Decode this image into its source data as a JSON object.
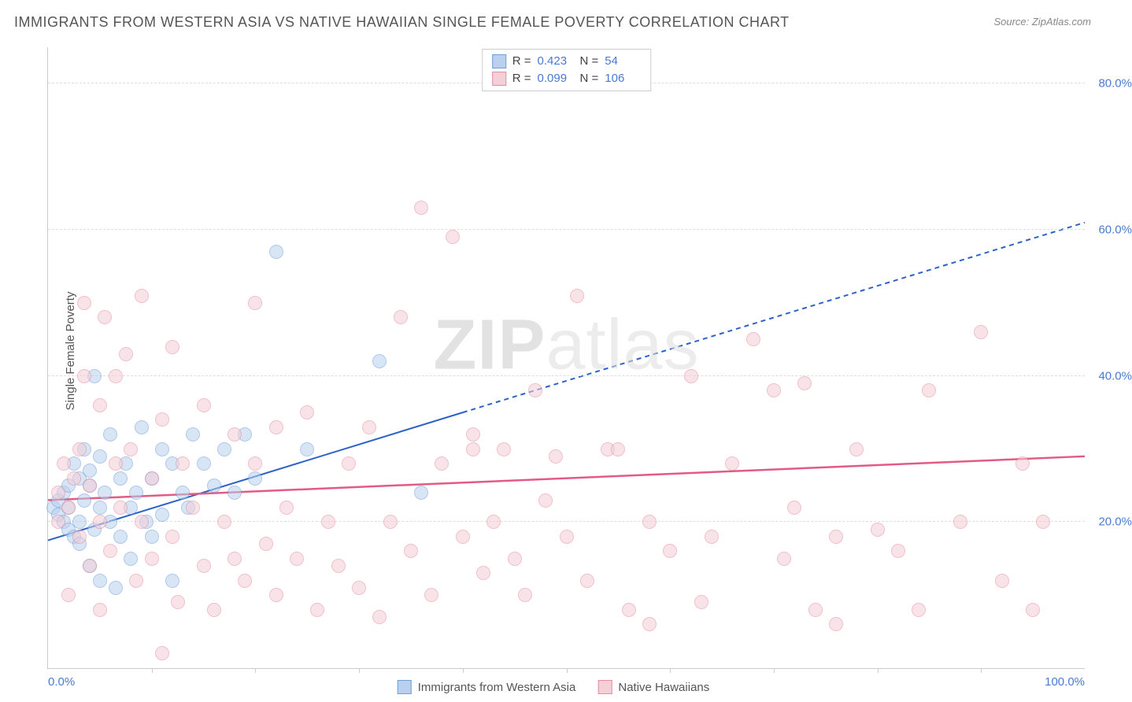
{
  "title": "IMMIGRANTS FROM WESTERN ASIA VS NATIVE HAWAIIAN SINGLE FEMALE POVERTY CORRELATION CHART",
  "source": "Source: ZipAtlas.com",
  "ylabel": "Single Female Poverty",
  "watermark_bold": "ZIP",
  "watermark_rest": "atlas",
  "chart": {
    "type": "scatter",
    "xlim": [
      0,
      100
    ],
    "ylim": [
      0,
      85
    ],
    "xtick_labels": {
      "0": "0.0%",
      "100": "100.0%"
    },
    "xtick_minor": [
      10,
      20,
      30,
      40,
      50,
      60,
      70,
      80,
      90
    ],
    "ytick_labels": {
      "20": "20.0%",
      "40": "40.0%",
      "60": "60.0%",
      "80": "80.0%"
    },
    "grid_color": "#dddddd",
    "axis_color": "#cccccc",
    "background_color": "#ffffff",
    "marker_radius": 9,
    "series": [
      {
        "id": "series-a",
        "name": "Immigrants from Western Asia",
        "fill": "#b9d0ee",
        "stroke": "#6f9edb",
        "fill_opacity": 0.55,
        "R": "0.423",
        "N": "54",
        "trend": {
          "color": "#2c62c8",
          "width": 2,
          "solid_from": [
            0,
            17.5
          ],
          "solid_to": [
            40,
            35
          ],
          "dash_to": [
            100,
            61
          ]
        },
        "points": [
          [
            0.5,
            22
          ],
          [
            1,
            21
          ],
          [
            1,
            23
          ],
          [
            1.5,
            20
          ],
          [
            1.5,
            24
          ],
          [
            2,
            19
          ],
          [
            2,
            25
          ],
          [
            2,
            22
          ],
          [
            2.5,
            28
          ],
          [
            2.5,
            18
          ],
          [
            3,
            26
          ],
          [
            3,
            20
          ],
          [
            3,
            17
          ],
          [
            3.5,
            23
          ],
          [
            3.5,
            30
          ],
          [
            4,
            14
          ],
          [
            4,
            25
          ],
          [
            4,
            27
          ],
          [
            4.5,
            40
          ],
          [
            4.5,
            19
          ],
          [
            5,
            22
          ],
          [
            5,
            12
          ],
          [
            5,
            29
          ],
          [
            5.5,
            24
          ],
          [
            6,
            32
          ],
          [
            6,
            20
          ],
          [
            6.5,
            11
          ],
          [
            7,
            26
          ],
          [
            7,
            18
          ],
          [
            7.5,
            28
          ],
          [
            8,
            22
          ],
          [
            8,
            15
          ],
          [
            8.5,
            24
          ],
          [
            9,
            33
          ],
          [
            9.5,
            20
          ],
          [
            10,
            26
          ],
          [
            10,
            18
          ],
          [
            11,
            30
          ],
          [
            11,
            21
          ],
          [
            12,
            12
          ],
          [
            12,
            28
          ],
          [
            13,
            24
          ],
          [
            13.5,
            22
          ],
          [
            14,
            32
          ],
          [
            15,
            28
          ],
          [
            16,
            25
          ],
          [
            17,
            30
          ],
          [
            18,
            24
          ],
          [
            19,
            32
          ],
          [
            20,
            26
          ],
          [
            22,
            57
          ],
          [
            25,
            30
          ],
          [
            32,
            42
          ],
          [
            36,
            24
          ]
        ]
      },
      {
        "id": "series-b",
        "name": "Native Hawaiians",
        "fill": "#f3cfd7",
        "stroke": "#e48da0",
        "fill_opacity": 0.55,
        "R": "0.099",
        "N": "106",
        "trend": {
          "color": "#e35b84",
          "width": 2.5,
          "solid_from": [
            0,
            23
          ],
          "solid_to": [
            100,
            29
          ]
        },
        "points": [
          [
            1,
            24
          ],
          [
            1,
            20
          ],
          [
            1.5,
            28
          ],
          [
            2,
            22
          ],
          [
            2,
            10
          ],
          [
            2.5,
            26
          ],
          [
            3,
            30
          ],
          [
            3,
            18
          ],
          [
            3.5,
            50
          ],
          [
            3.5,
            40
          ],
          [
            4,
            14
          ],
          [
            4,
            25
          ],
          [
            5,
            36
          ],
          [
            5,
            20
          ],
          [
            5,
            8
          ],
          [
            5.5,
            48
          ],
          [
            6,
            16
          ],
          [
            6.5,
            28
          ],
          [
            6.5,
            40
          ],
          [
            7,
            22
          ],
          [
            7.5,
            43
          ],
          [
            8,
            30
          ],
          [
            8.5,
            12
          ],
          [
            9,
            51
          ],
          [
            9,
            20
          ],
          [
            10,
            26
          ],
          [
            10,
            15
          ],
          [
            11,
            34
          ],
          [
            11,
            2
          ],
          [
            12,
            18
          ],
          [
            12.5,
            9
          ],
          [
            13,
            28
          ],
          [
            14,
            22
          ],
          [
            15,
            36
          ],
          [
            15,
            14
          ],
          [
            16,
            8
          ],
          [
            17,
            20
          ],
          [
            18,
            32
          ],
          [
            18,
            15
          ],
          [
            19,
            12
          ],
          [
            20,
            28
          ],
          [
            21,
            17
          ],
          [
            22,
            33
          ],
          [
            22,
            10
          ],
          [
            23,
            22
          ],
          [
            24,
            15
          ],
          [
            25,
            35
          ],
          [
            26,
            8
          ],
          [
            27,
            20
          ],
          [
            28,
            14
          ],
          [
            29,
            28
          ],
          [
            30,
            11
          ],
          [
            31,
            33
          ],
          [
            32,
            7
          ],
          [
            33,
            20
          ],
          [
            34,
            48
          ],
          [
            35,
            16
          ],
          [
            36,
            63
          ],
          [
            37,
            10
          ],
          [
            38,
            28
          ],
          [
            39,
            59
          ],
          [
            40,
            18
          ],
          [
            41,
            32
          ],
          [
            42,
            13
          ],
          [
            43,
            20
          ],
          [
            44,
            30
          ],
          [
            45,
            15
          ],
          [
            46,
            10
          ],
          [
            47,
            38
          ],
          [
            48,
            23
          ],
          [
            49,
            29
          ],
          [
            50,
            18
          ],
          [
            51,
            51
          ],
          [
            52,
            12
          ],
          [
            54,
            30
          ],
          [
            55,
            30
          ],
          [
            56,
            8
          ],
          [
            58,
            20
          ],
          [
            60,
            16
          ],
          [
            62,
            40
          ],
          [
            63,
            9
          ],
          [
            64,
            18
          ],
          [
            66,
            28
          ],
          [
            68,
            45
          ],
          [
            70,
            38
          ],
          [
            71,
            15
          ],
          [
            72,
            22
          ],
          [
            73,
            39
          ],
          [
            74,
            8
          ],
          [
            76,
            18
          ],
          [
            78,
            30
          ],
          [
            80,
            19
          ],
          [
            82,
            16
          ],
          [
            84,
            8
          ],
          [
            85,
            38
          ],
          [
            88,
            20
          ],
          [
            90,
            46
          ],
          [
            92,
            12
          ],
          [
            94,
            28
          ],
          [
            95,
            8
          ],
          [
            96,
            20
          ],
          [
            76,
            6
          ],
          [
            58,
            6
          ],
          [
            12,
            44
          ],
          [
            20,
            50
          ],
          [
            41,
            30
          ]
        ]
      }
    ]
  },
  "legend_bottom": {
    "a_label": "Immigrants from Western Asia",
    "b_label": "Native Hawaiians"
  }
}
